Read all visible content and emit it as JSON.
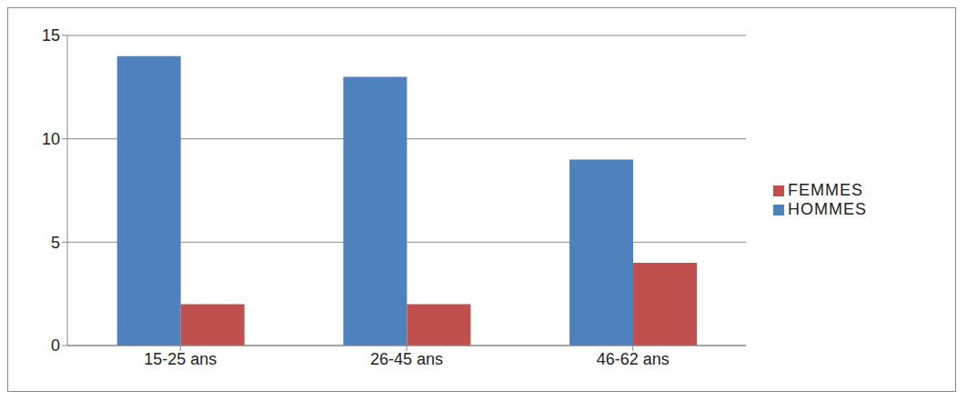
{
  "chart_data": {
    "type": "bar",
    "categories": [
      "15-25 ans",
      "26-45 ans",
      "46-62 ans"
    ],
    "series": [
      {
        "name": "HOMMES",
        "color": "#4f81bd",
        "values": [
          14,
          13,
          9
        ]
      },
      {
        "name": "FEMMES",
        "color": "#c0504d",
        "values": [
          2,
          2,
          4
        ]
      }
    ],
    "ylim": [
      0,
      15
    ],
    "yticks": [
      0,
      5,
      10,
      15
    ],
    "grid": true,
    "legend": "right"
  }
}
